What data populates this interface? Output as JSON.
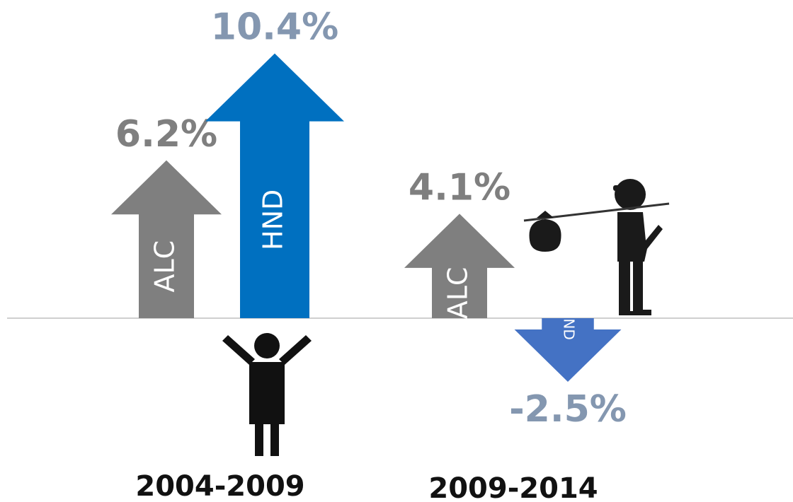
{
  "chart_data": {
    "type": "arrow-bar",
    "categories": [
      "2004-2009",
      "2009-2014"
    ],
    "series": [
      {
        "name": "ALC",
        "color": "#7f7f7f",
        "label_color": "#7f7f7f",
        "values": [
          6.2,
          4.1
        ],
        "value_labels": [
          "6.2%",
          "4.1%"
        ]
      },
      {
        "name": "HND",
        "colors": [
          "#0070c0",
          "#4472c4"
        ],
        "label_color": "#8497b0",
        "values": [
          10.4,
          -2.5
        ],
        "value_labels": [
          "10.4%",
          "-2.5%"
        ]
      }
    ]
  }
}
